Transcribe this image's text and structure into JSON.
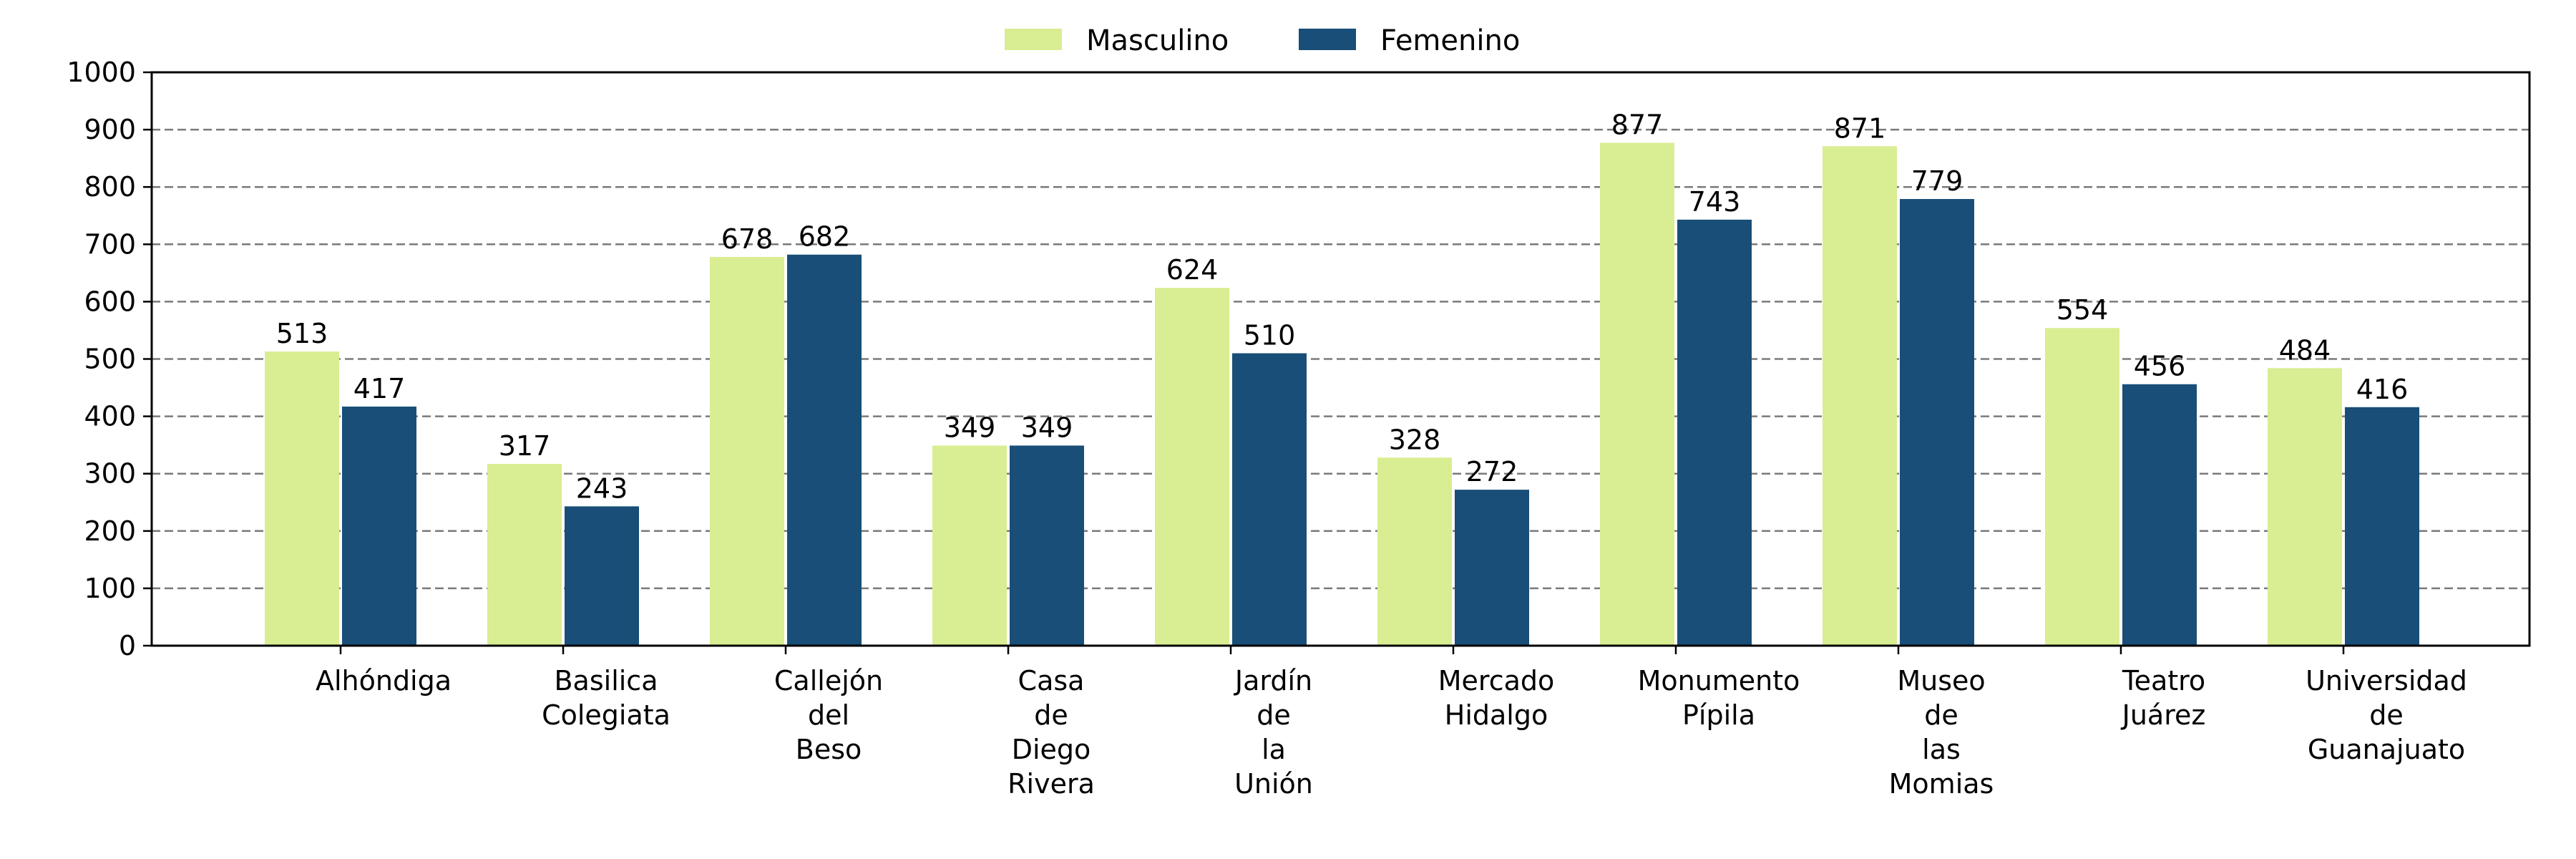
{
  "chart_data": {
    "type": "bar",
    "categories": [
      [
        "Alhóndiga"
      ],
      [
        "Basilica",
        "Colegiata"
      ],
      [
        "Callejón",
        "del",
        "Beso"
      ],
      [
        "Casa",
        "de",
        "Diego",
        "Rivera"
      ],
      [
        "Jardín",
        "de",
        "la",
        "Unión"
      ],
      [
        "Mercado",
        "Hidalgo"
      ],
      [
        "Monumento",
        "Pípila"
      ],
      [
        "Museo",
        "de",
        "las",
        "Momias"
      ],
      [
        "Teatro",
        "Juárez"
      ],
      [
        "Universidad",
        "de",
        "Guanajuato"
      ]
    ],
    "series": [
      {
        "name": "Masculino",
        "color": "#d9ed92",
        "values": [
          513,
          317,
          678,
          349,
          624,
          328,
          877,
          871,
          554,
          484
        ]
      },
      {
        "name": "Femenino",
        "color": "#184e77",
        "values": [
          417,
          243,
          682,
          349,
          510,
          272,
          743,
          779,
          456,
          416
        ]
      }
    ],
    "ylim": [
      0,
      1000
    ],
    "yticks": [
      0,
      100,
      200,
      300,
      400,
      500,
      600,
      700,
      800,
      900,
      1000
    ],
    "grid": "horizontal dashed",
    "legend_position": "top-center",
    "title": "",
    "xlabel": "",
    "ylabel": ""
  }
}
